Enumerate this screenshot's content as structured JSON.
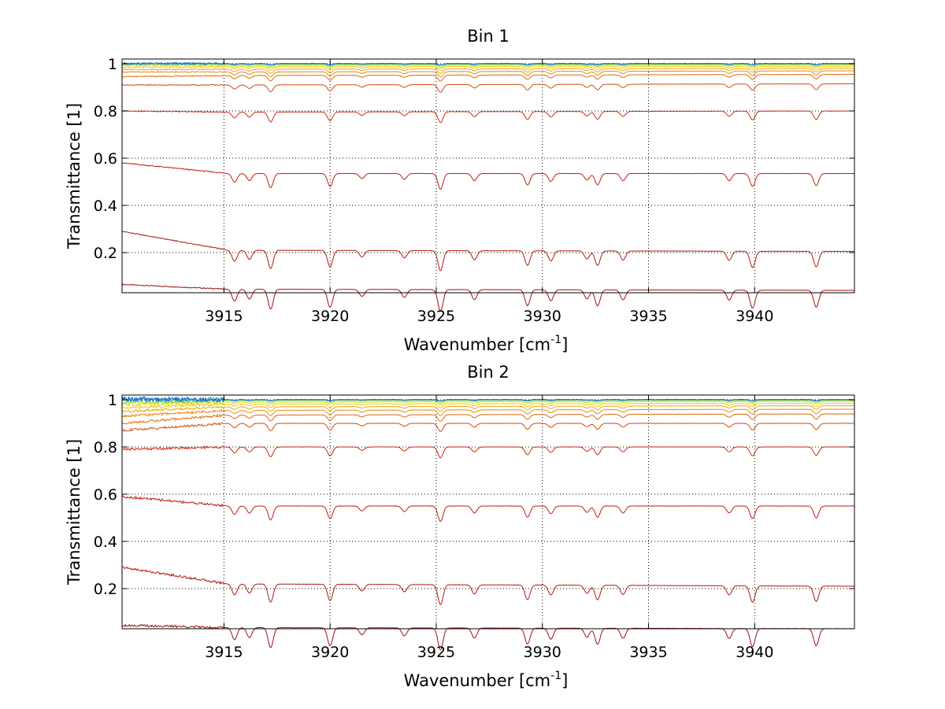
{
  "chart_data": [
    {
      "type": "line",
      "title": "Bin 1",
      "xlabel": "Wavenumber [cm",
      "xlabel_sup": "-1",
      "xlabel_end": "]",
      "ylabel": "Transmittance [1]",
      "xlim": [
        3910.2,
        3944.7
      ],
      "ylim": [
        0.03,
        1.02
      ],
      "xticks": [
        3915,
        3920,
        3925,
        3930,
        3935,
        3940
      ],
      "yticks": [
        0.2,
        0.4,
        0.6,
        0.8,
        1
      ],
      "ytick_labels": [
        "0.2",
        "0.4",
        "0.6",
        "0.8",
        "1"
      ],
      "grid": true,
      "absorption_lines_cm-1": [
        3915.5,
        3916.2,
        3917.2,
        3920.0,
        3921.5,
        3923.5,
        3925.2,
        3926.8,
        3929.3,
        3930.4,
        3932.1,
        3932.6,
        3933.8,
        3938.8,
        3939.9,
        3942.9
      ],
      "series": [
        {
          "baseline": [
            0.065,
            0.045,
            0.04
          ],
          "color": "#a01010"
        },
        {
          "baseline": [
            0.29,
            0.21,
            0.205
          ],
          "color": "#b01a10"
        },
        {
          "baseline": [
            0.58,
            0.535,
            0.535
          ],
          "color": "#c01e10"
        },
        {
          "baseline": [
            0.8,
            0.795,
            0.8
          ],
          "color": "#cc2a10"
        },
        {
          "baseline": [
            0.91,
            0.91,
            0.915
          ],
          "color": "#d44a10"
        },
        {
          "baseline": [
            0.945,
            0.95,
            0.955
          ],
          "color": "#dd6a10"
        },
        {
          "baseline": [
            0.965,
            0.965,
            0.97
          ],
          "color": "#e48a10"
        },
        {
          "baseline": [
            0.975,
            0.977,
            0.98
          ],
          "color": "#eaa810"
        },
        {
          "baseline": [
            0.985,
            0.987,
            0.988
          ],
          "color": "#f0c810"
        },
        {
          "baseline": [
            0.992,
            0.993,
            0.994
          ],
          "color": "#e8e010"
        },
        {
          "baseline": [
            0.997,
            0.997,
            0.997
          ],
          "color": "#9ad040"
        },
        {
          "baseline": [
            1.0,
            1.0,
            1.0
          ],
          "color": "#20b0c0"
        },
        {
          "baseline": [
            1.001,
            1.001,
            1.001
          ],
          "color": "#1060d0"
        }
      ]
    },
    {
      "type": "line",
      "title": "Bin 2",
      "xlabel": "Wavenumber [cm",
      "xlabel_sup": "-1",
      "xlabel_end": "]",
      "ylabel": "Transmittance [1]",
      "xlim": [
        3910.2,
        3944.7
      ],
      "ylim": [
        0.03,
        1.02
      ],
      "xticks": [
        3915,
        3920,
        3925,
        3930,
        3935,
        3940
      ],
      "yticks": [
        0.2,
        0.4,
        0.6,
        0.8,
        1
      ],
      "ytick_labels": [
        "0.2",
        "0.4",
        "0.6",
        "0.8",
        "1"
      ],
      "grid": true,
      "absorption_lines_cm-1": [
        3915.5,
        3916.2,
        3917.2,
        3920.0,
        3921.5,
        3923.5,
        3925.2,
        3926.8,
        3929.3,
        3930.4,
        3932.1,
        3932.6,
        3933.8,
        3938.8,
        3939.9,
        3942.9
      ],
      "series": [
        {
          "baseline": [
            0.045,
            0.035,
            0.03
          ],
          "color": "#a01010"
        },
        {
          "baseline": [
            0.29,
            0.22,
            0.21
          ],
          "color": "#b01a10"
        },
        {
          "baseline": [
            0.59,
            0.55,
            0.55
          ],
          "color": "#c01e10"
        },
        {
          "baseline": [
            0.79,
            0.8,
            0.8
          ],
          "color": "#cc2a10"
        },
        {
          "baseline": [
            0.87,
            0.9,
            0.9
          ],
          "color": "#d44a10"
        },
        {
          "baseline": [
            0.9,
            0.935,
            0.94
          ],
          "color": "#dd6a10"
        },
        {
          "baseline": [
            0.93,
            0.955,
            0.96
          ],
          "color": "#e48a10"
        },
        {
          "baseline": [
            0.95,
            0.97,
            0.975
          ],
          "color": "#eaa810"
        },
        {
          "baseline": [
            0.965,
            0.982,
            0.985
          ],
          "color": "#f0c810"
        },
        {
          "baseline": [
            0.98,
            0.99,
            0.993
          ],
          "color": "#e8e010"
        },
        {
          "baseline": [
            0.99,
            0.996,
            0.997
          ],
          "color": "#9ad040"
        },
        {
          "baseline": [
            1.0,
            1.0,
            1.0
          ],
          "color": "#20b0c0"
        },
        {
          "baseline": [
            1.003,
            1.001,
            1.001
          ],
          "color": "#1060d0"
        }
      ]
    }
  ]
}
